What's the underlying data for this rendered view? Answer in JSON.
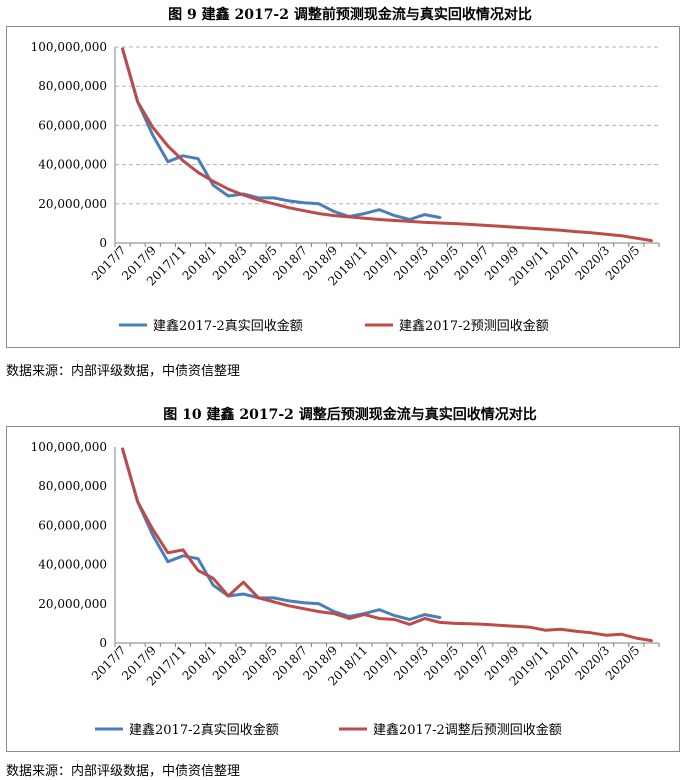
{
  "figures": [
    {
      "title": "图 9  建鑫 2017-2 调整前预测现金流与真实回收情况对比",
      "source": "数据来源：内部评级数据，中债资信整理"
    },
    {
      "title": "图 10  建鑫 2017-2 调整后预测现金流与真实回收情况对比",
      "source": "数据来源：内部评级数据，中债资信整理"
    }
  ],
  "colors": {
    "actual": "#4a7ebb",
    "predicted": "#be4b48",
    "grid": "#b3b3b3",
    "axis": "#808080"
  },
  "chart_data": [
    {
      "type": "line",
      "title": "图 9  建鑫 2017-2 调整前预测现金流与真实回收情况对比",
      "xlabel": "",
      "ylabel": "",
      "ylim": [
        0,
        100000000
      ],
      "yticks": [
        "0",
        "20,000,000",
        "40,000,000",
        "60,000,000",
        "80,000,000",
        "100,000,000"
      ],
      "xticks": [
        "2017/7",
        "2017/9",
        "2017/11",
        "2018/1",
        "2018/3",
        "2018/5",
        "2018/7",
        "2018/9",
        "2018/11",
        "2019/1",
        "2019/3",
        "2019/5",
        "2019/7",
        "2019/9",
        "2019/11",
        "2020/1",
        "2020/3",
        "2020/5"
      ],
      "grid": true,
      "legend": "bottom",
      "series": [
        {
          "name": "建鑫2017-2真实回收金额",
          "color": "#4a7ebb",
          "values": [
            99000000,
            72000000,
            55000000,
            41500000,
            44500000,
            43000000,
            29500000,
            24000000,
            25000000,
            23000000,
            23000000,
            21500000,
            20500000,
            20000000,
            16000000,
            13500000,
            15000000,
            17000000,
            14000000,
            12000000,
            14500000,
            13000000
          ]
        },
        {
          "name": "建鑫2017-2预测回收金额",
          "color": "#be4b48",
          "values": [
            99000000,
            72000000,
            59000000,
            49500000,
            42000000,
            36000000,
            31500000,
            27500000,
            24500000,
            22000000,
            20000000,
            18000000,
            16500000,
            15000000,
            14000000,
            13300000,
            12600000,
            12000000,
            11500000,
            11000000,
            10500000,
            10200000,
            9900000,
            9500000,
            9000000,
            8500000,
            8000000,
            7500000,
            7000000,
            6500000,
            5800000,
            5200000,
            4500000,
            3700000,
            2500000,
            1200000
          ]
        }
      ]
    },
    {
      "type": "line",
      "title": "图 10  建鑫 2017-2 调整后预测现金流与真实回收情况对比",
      "xlabel": "",
      "ylabel": "",
      "ylim": [
        0,
        100000000
      ],
      "yticks": [
        "0",
        "20,000,000",
        "40,000,000",
        "60,000,000",
        "80,000,000",
        "100,000,000"
      ],
      "xticks": [
        "2017/7",
        "2017/9",
        "2017/11",
        "2018/1",
        "2018/3",
        "2018/5",
        "2018/7",
        "2018/9",
        "2018/11",
        "2019/1",
        "2019/3",
        "2019/5",
        "2019/7",
        "2019/9",
        "2019/11",
        "2020/1",
        "2020/3",
        "2020/5"
      ],
      "grid": false,
      "legend": "bottom",
      "series": [
        {
          "name": "建鑫2017-2真实回收金额",
          "color": "#4a7ebb",
          "values": [
            99000000,
            72000000,
            55000000,
            41500000,
            44500000,
            43000000,
            29500000,
            24000000,
            25000000,
            23000000,
            23000000,
            21500000,
            20500000,
            20000000,
            16000000,
            13500000,
            15000000,
            17000000,
            14000000,
            12000000,
            14500000,
            13000000
          ]
        },
        {
          "name": "建鑫2017-2调整后预测回收金额",
          "color": "#be4b48",
          "values": [
            99000000,
            72000000,
            58000000,
            46000000,
            47500000,
            37000000,
            33000000,
            24000000,
            31000000,
            23000000,
            21000000,
            19000000,
            17500000,
            16000000,
            15000000,
            12500000,
            14500000,
            12500000,
            12000000,
            9500000,
            12500000,
            10500000,
            10000000,
            9800000,
            9500000,
            9000000,
            8500000,
            8000000,
            6500000,
            7000000,
            6000000,
            5200000,
            4000000,
            4500000,
            2500000,
            1200000
          ]
        }
      ]
    }
  ]
}
